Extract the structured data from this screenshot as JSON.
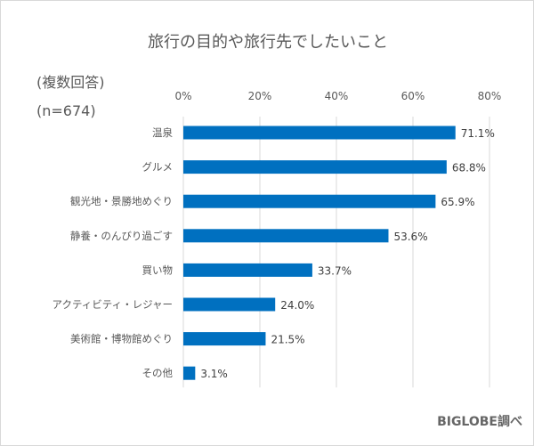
{
  "chart_data": {
    "type": "bar",
    "orientation": "horizontal",
    "title": "旅行の目的や旅行先でしたいこと",
    "subtitle": [
      "(複数回答)",
      "(n=674)"
    ],
    "source": "BIGLOBE調べ",
    "categories": [
      "温泉",
      "グルメ",
      "観光地・景勝地めぐり",
      "静養・のんびり過ごす",
      "買い物",
      "アクティビティ・レジャー",
      "美術館・博物館めぐり",
      "その他"
    ],
    "values": [
      71.1,
      68.8,
      65.9,
      53.6,
      33.7,
      24.0,
      21.5,
      3.1
    ],
    "data_labels": [
      "71.1%",
      "68.8%",
      "65.9%",
      "53.6%",
      "33.7%",
      "24.0%",
      "21.5%",
      "3.1%"
    ],
    "xlim": [
      0,
      80
    ],
    "ticks": [
      "0%",
      "20%",
      "40%",
      "60%",
      "80%"
    ],
    "tick_values": [
      0,
      20,
      40,
      60,
      80
    ],
    "axis_position": "top",
    "grid": true,
    "bar_color": "#0070c0",
    "grid_color": "#d9d9d9"
  }
}
